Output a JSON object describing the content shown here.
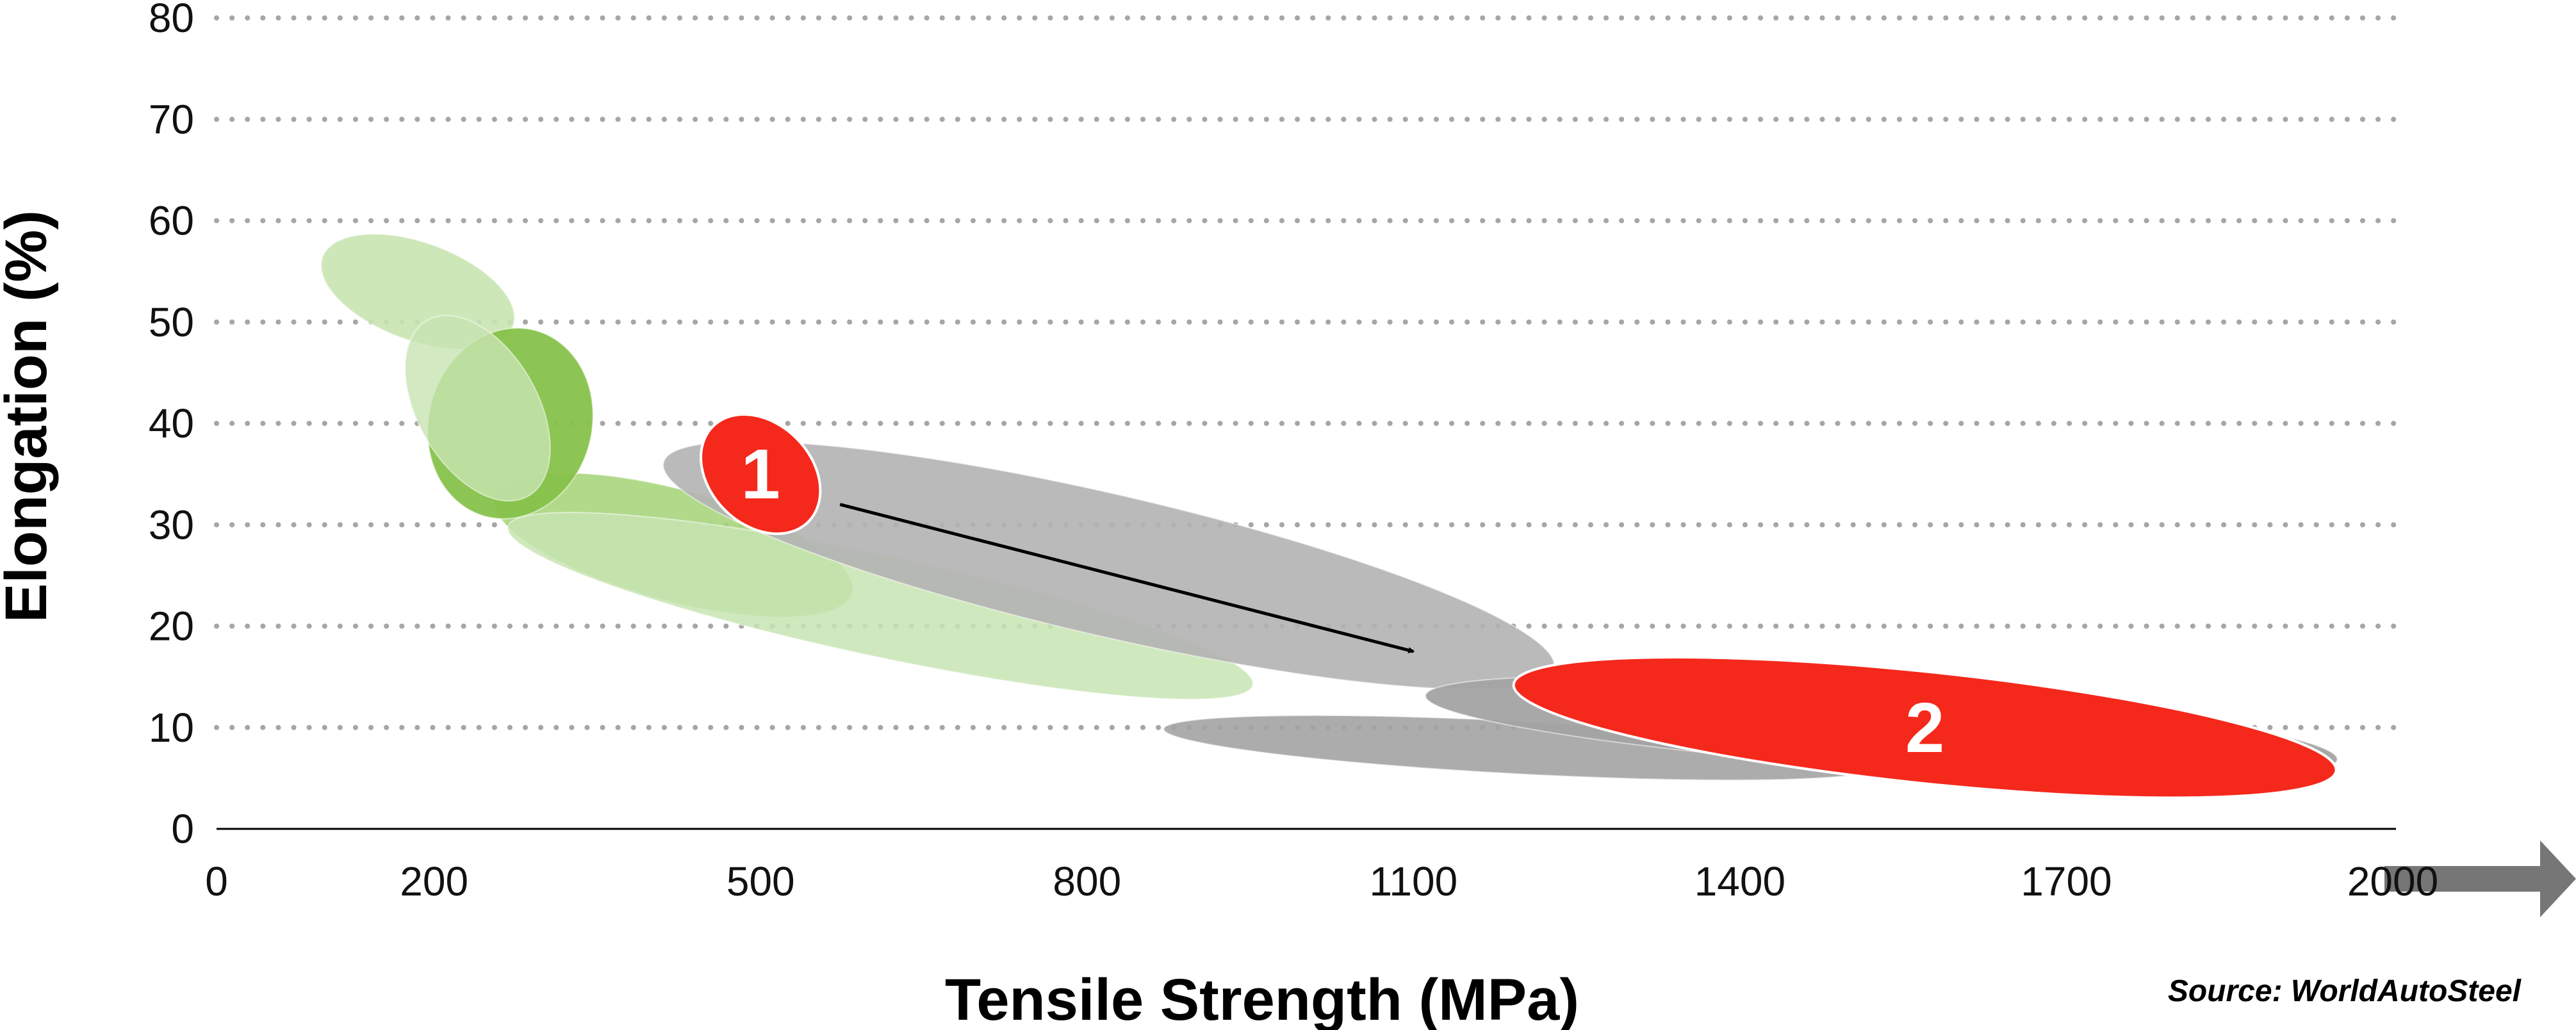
{
  "colors": {
    "light_green": "#c8e4b1",
    "mid_green": "#a9d57d",
    "green": "#86c24a",
    "gray": "#b3b3b3",
    "dark_gray": "#a3a3a3",
    "red": "#f5281c",
    "grid": "#a6a6a6",
    "arrow": "#000000",
    "axis_arrow": "#767676"
  },
  "chart_data": {
    "type": "bubble-region",
    "xlabel": "Tensile Strength (MPa)",
    "ylabel": "Elongation (%)",
    "source": "Source: WorldAutoSteel",
    "xlim": [
      0,
      2000
    ],
    "ylim": [
      0,
      80
    ],
    "x_ticks": [
      "0",
      "200",
      "500",
      "800",
      "1100",
      "1400",
      "1700",
      "2000"
    ],
    "y_ticks": [
      "0",
      "10",
      "20",
      "30",
      "40",
      "50",
      "60",
      "70",
      "80"
    ],
    "grid": "horizontal-dotted",
    "regions": [
      {
        "group": "light_green",
        "center": [
          185,
          53
        ],
        "rx_mpa": 45,
        "ry_pct": 10,
        "rotation_deg": -70,
        "opacity": 0.9
      },
      {
        "group": "mid_green",
        "center": [
          420,
          28
        ],
        "rx_mpa": 170,
        "ry_pct": 5.5,
        "rotation_deg": 15,
        "opacity": 0.9
      },
      {
        "group": "light_green",
        "center": [
          610,
          22
        ],
        "rx_mpa": 350,
        "ry_pct": 5,
        "rotation_deg": 12,
        "opacity": 0.85
      },
      {
        "group": "gray",
        "center": [
          820,
          26
        ],
        "rx_mpa": 420,
        "ry_pct": 7,
        "rotation_deg": 13,
        "opacity": 0.9
      },
      {
        "group": "dark_gray",
        "center": [
          1200,
          8
        ],
        "rx_mpa": 330,
        "ry_pct": 2.6,
        "rotation_deg": 3,
        "opacity": 0.9
      },
      {
        "group": "dark_gray",
        "center": [
          1530,
          10
        ],
        "rx_mpa": 420,
        "ry_pct": 4,
        "rotation_deg": 4,
        "opacity": 0.95
      },
      {
        "group": "green",
        "center": [
          270,
          40
        ],
        "rx_mpa": 75,
        "ry_pct": 9.5,
        "rotation_deg": 15,
        "opacity": 0.95
      },
      {
        "group": "light_green",
        "center": [
          240,
          41.5
        ],
        "rx_mpa": 55,
        "ry_pct": 10,
        "rotation_deg": -30,
        "opacity": 0.8
      },
      {
        "group": "red",
        "center": [
          500,
          35
        ],
        "rx_mpa": 62,
        "ry_pct": 5,
        "rotation_deg": 45,
        "opacity": 1,
        "label": "1"
      },
      {
        "group": "red",
        "center": [
          1570,
          10
        ],
        "rx_mpa": 380,
        "ry_pct": 5.5,
        "rotation_deg": 6,
        "opacity": 1,
        "label": "2"
      }
    ],
    "arrow": {
      "from": [
        573,
        32
      ],
      "to": [
        1100,
        17.5
      ]
    }
  }
}
